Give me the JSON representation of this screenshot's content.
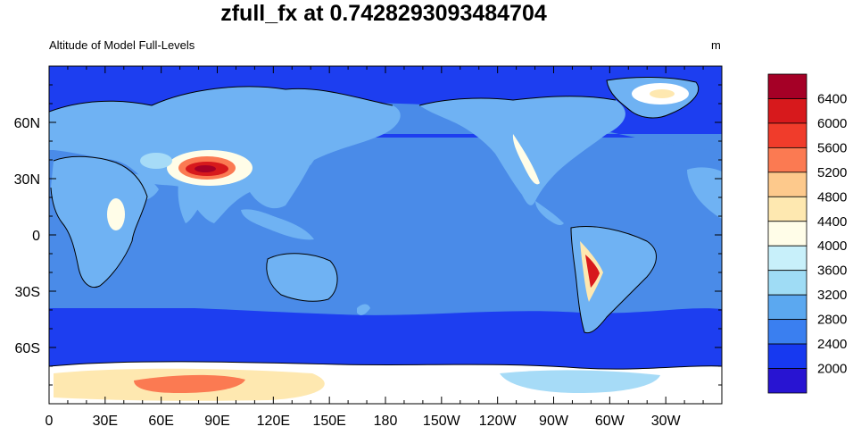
{
  "title": "zfull_fx at 0.7428293093484704",
  "subtitle_left": "Altitude of Model Full-Levels",
  "subtitle_right": "m",
  "x_tick_labels": [
    "0",
    "30E",
    "60E",
    "90E",
    "120E",
    "150E",
    "180",
    "150W",
    "120W",
    "90W",
    "60W",
    "30W"
  ],
  "y_tick_labels": [
    "60N",
    "30N",
    "0",
    "30S",
    "60S"
  ],
  "colorbar": {
    "labels": [
      "6400",
      "6000",
      "5600",
      "5200",
      "4800",
      "4400",
      "4000",
      "3600",
      "3200",
      "2800",
      "2400",
      "2000"
    ],
    "colors": [
      "#a50026",
      "#d7191c",
      "#f03c2b",
      "#fb7a52",
      "#fdc98c",
      "#fee8b0",
      "#fffde8",
      "#c8f0fa",
      "#9fdcf5",
      "#5ba8f0",
      "#3a7ff0",
      "#1739f0",
      "#2814d2"
    ]
  },
  "map": {
    "ocean_color": "#4a8be8",
    "antarctic_ring_color": "#1d3ef0",
    "arctic_color": "#1d3ef0",
    "land_low_color": "#6fb2f3",
    "land_mid_color": "#a6dbf7",
    "land_high_color": "#ffffff",
    "peak_colors": [
      "#fdc98c",
      "#fb7a52",
      "#d7191c",
      "#a50026"
    ]
  }
}
